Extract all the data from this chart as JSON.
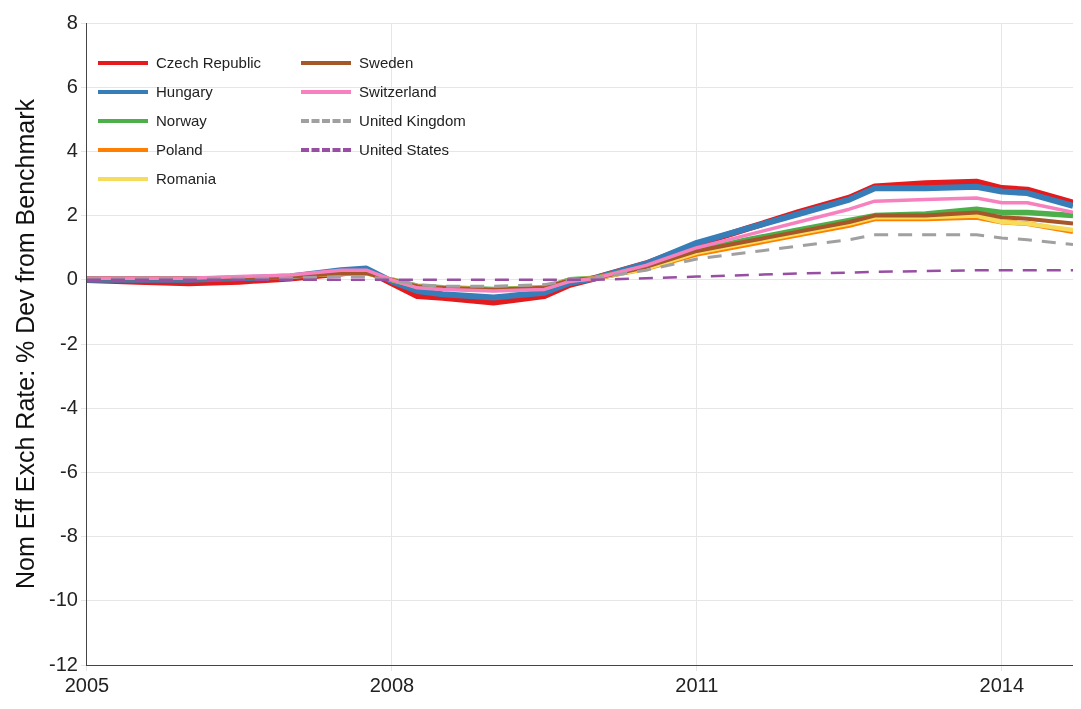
{
  "chart_data": {
    "type": "line",
    "ylabel": "Nom Eff Exch Rate: % Dev from Benchmark",
    "x": [
      2005,
      2005.5,
      2006,
      2006.5,
      2007,
      2007.5,
      2007.75,
      2008,
      2008.25,
      2008.5,
      2009,
      2009.5,
      2009.75,
      2010,
      2010.5,
      2011,
      2011.5,
      2012,
      2012.5,
      2012.75,
      2013.25,
      2013.75,
      2014,
      2014.25,
      2014.7
    ],
    "xlim": [
      2005,
      2014.7
    ],
    "xticks": [
      2005,
      2008,
      2011,
      2014
    ],
    "ylim": [
      -12,
      8
    ],
    "yticks": [
      -12,
      -10,
      -8,
      -6,
      -4,
      -2,
      0,
      2,
      4,
      6,
      8
    ],
    "grid": true,
    "legend": "top left",
    "line_style": "solid",
    "marker": "none",
    "series": [
      {
        "name": "Czech Republic",
        "color": "#e41a1c",
        "values": [
          0,
          -0.05,
          -0.1,
          -0.05,
          0.05,
          0.2,
          0.3,
          -0.1,
          -0.5,
          -0.55,
          -0.7,
          -0.5,
          -0.15,
          0.05,
          0.5,
          1.1,
          1.6,
          2.1,
          2.55,
          2.9,
          3.0,
          3.05,
          2.85,
          2.8,
          2.4
        ]
      },
      {
        "name": "Hungary",
        "color": "#377eb8",
        "values": [
          0,
          0,
          0,
          0.05,
          0.1,
          0.3,
          0.35,
          -0.05,
          -0.35,
          -0.45,
          -0.55,
          -0.4,
          -0.1,
          0.05,
          0.5,
          1.15,
          1.6,
          2.05,
          2.5,
          2.85,
          2.85,
          2.9,
          2.75,
          2.7,
          2.3
        ]
      },
      {
        "name": "Norway",
        "color": "#4daf4a",
        "values": [
          null,
          null,
          null,
          null,
          null,
          null,
          null,
          0,
          -0.2,
          -0.25,
          -0.3,
          -0.25,
          0,
          0.05,
          0.4,
          0.9,
          1.25,
          1.55,
          1.85,
          2.0,
          2.05,
          2.2,
          2.1,
          2.1,
          2.0
        ]
      },
      {
        "name": "Poland",
        "color": "#ff7f00",
        "values": [
          null,
          null,
          null,
          null,
          null,
          null,
          null,
          null,
          null,
          null,
          null,
          null,
          null,
          0.05,
          0.35,
          0.8,
          1.1,
          1.4,
          1.7,
          1.9,
          1.9,
          1.95,
          1.8,
          1.75,
          1.5
        ]
      },
      {
        "name": "Romania",
        "color": "#f5dc5a",
        "values": [
          null,
          null,
          null,
          null,
          0.1,
          0.2,
          0.2,
          0,
          -0.2,
          -0.25,
          -0.3,
          -0.25,
          0,
          0.05,
          0.35,
          0.85,
          1.15,
          1.45,
          1.75,
          1.95,
          1.95,
          2.0,
          1.8,
          1.75,
          1.55
        ]
      },
      {
        "name": "Sweden",
        "color": "#a65628",
        "values": [
          0.05,
          0.05,
          0.05,
          0.05,
          0.1,
          0.2,
          0.2,
          0,
          -0.2,
          -0.25,
          -0.3,
          -0.25,
          0,
          0.05,
          0.4,
          0.9,
          1.2,
          1.5,
          1.8,
          2.0,
          2.0,
          2.1,
          1.95,
          1.9,
          1.75
        ]
      },
      {
        "name": "Switzerland",
        "color": "#f781bf",
        "values": [
          0.05,
          0.05,
          0.05,
          0.1,
          0.15,
          0.3,
          0.3,
          0,
          -0.25,
          -0.3,
          -0.35,
          -0.3,
          -0.05,
          0.05,
          0.45,
          1.0,
          1.4,
          1.8,
          2.2,
          2.45,
          2.5,
          2.55,
          2.4,
          2.4,
          2.1
        ]
      },
      {
        "name": "United Kingdom",
        "color": "#a0a0a0",
        "line_style": "dashed",
        "values": [
          0.05,
          0.05,
          0.05,
          0.05,
          0.05,
          0.1,
          0.1,
          0,
          -0.15,
          -0.2,
          -0.2,
          -0.15,
          0,
          0.05,
          0.3,
          0.65,
          0.85,
          1.05,
          1.25,
          1.4,
          1.4,
          1.4,
          1.3,
          1.25,
          1.1
        ]
      },
      {
        "name": "United States",
        "color": "#984ea3",
        "line_style": "dashed",
        "values": [
          0,
          0,
          0,
          0,
          0,
          0,
          0,
          0,
          0,
          0,
          0,
          0,
          0,
          0,
          0.05,
          0.1,
          0.15,
          0.2,
          0.22,
          0.25,
          0.27,
          0.3,
          0.3,
          0.3,
          0.3
        ]
      }
    ]
  }
}
